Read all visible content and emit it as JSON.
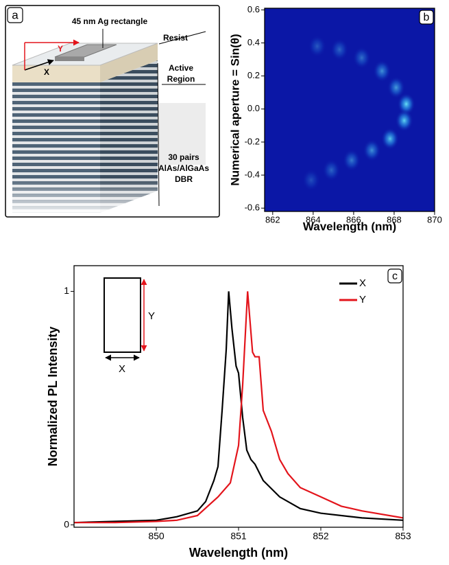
{
  "schematic": {
    "panel": "a",
    "ag_label": "45 nm Ag rectangle",
    "resist_label": "Resist",
    "active_label": [
      "Active",
      "Region"
    ],
    "dbr_label": [
      "30 pairs",
      "AlAs/AlGaAs",
      "DBR"
    ],
    "x_arrow": "X",
    "y_arrow": "Y"
  },
  "chart_data": [
    {
      "type": "heatmap",
      "panel": "b",
      "x_label": "Wavelength (nm)",
      "y_label": "Numerical aperture = Sin(θ)",
      "xlim": [
        861.6,
        870
      ],
      "xticks": [
        862,
        864,
        866,
        868,
        870
      ],
      "ylim": [
        -0.62,
        0.61
      ],
      "yticks": [
        -0.6,
        -0.4,
        -0.2,
        {
          "value": 0,
          "label": "0.0"
        },
        0.2,
        0.4,
        0.6
      ],
      "background": "#0b17a6",
      "spot_color": "#5ff0ff",
      "spots": {
        "x": [
          864.2,
          865.3,
          866.4,
          867.4,
          868.1,
          868.6,
          868.5,
          867.8,
          866.9,
          865.9,
          864.9,
          863.9
        ],
        "y": [
          0.38,
          0.36,
          0.31,
          0.23,
          0.13,
          0.03,
          -0.07,
          -0.18,
          -0.25,
          -0.31,
          -0.37,
          -0.43
        ],
        "intensity": [
          0.3,
          0.35,
          0.4,
          0.55,
          0.6,
          0.9,
          0.85,
          0.8,
          0.55,
          0.45,
          0.35,
          0.25
        ]
      }
    },
    {
      "type": "line",
      "panel": "c",
      "x_label": "Wavelength (nm)",
      "y_label": "Normalized PL Intensity",
      "xlim": [
        849,
        853
      ],
      "xticks": [
        850,
        851,
        852,
        853
      ],
      "ylim": [
        -0.01,
        1.11
      ],
      "yticks": [
        0,
        1
      ],
      "legend": "top-right",
      "inset": {
        "x_label": "X",
        "y_label": "Y"
      },
      "series": [
        {
          "name": "X",
          "color": "#000000",
          "x": [
            849,
            849.5,
            850,
            850.25,
            850.5,
            850.6,
            850.7,
            850.75,
            850.8,
            850.85,
            850.88,
            850.92,
            850.97,
            851.0,
            851.05,
            851.1,
            851.15,
            851.2,
            851.3,
            851.5,
            851.75,
            852,
            852.5,
            853
          ],
          "values": [
            0.01,
            0.015,
            0.02,
            0.035,
            0.06,
            0.1,
            0.19,
            0.25,
            0.49,
            0.75,
            1.0,
            0.84,
            0.68,
            0.65,
            0.46,
            0.32,
            0.28,
            0.26,
            0.19,
            0.12,
            0.07,
            0.05,
            0.03,
            0.02
          ]
        },
        {
          "name": "Y",
          "color": "#e3141b",
          "x": [
            849,
            849.5,
            850,
            850.25,
            850.5,
            850.75,
            850.9,
            851.0,
            851.05,
            851.11,
            851.17,
            851.2,
            851.25,
            851.3,
            851.4,
            851.5,
            851.6,
            851.75,
            852,
            852.25,
            852.5,
            853
          ],
          "values": [
            0.01,
            0.01,
            0.015,
            0.02,
            0.04,
            0.12,
            0.18,
            0.34,
            0.6,
            1.0,
            0.74,
            0.72,
            0.72,
            0.49,
            0.4,
            0.28,
            0.22,
            0.16,
            0.12,
            0.08,
            0.06,
            0.03
          ]
        }
      ]
    }
  ]
}
